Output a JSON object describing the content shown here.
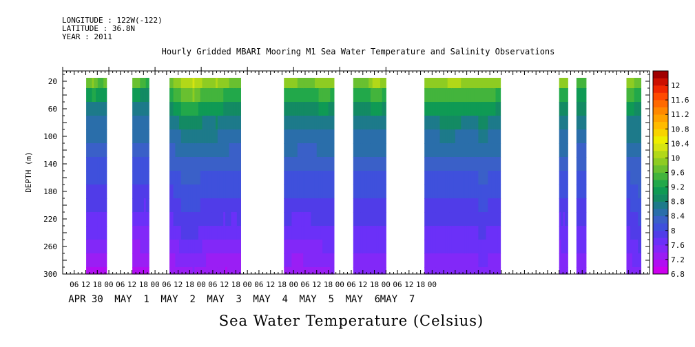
{
  "meta": {
    "longitude": "LONGITUDE : 122W(-122)",
    "latitude": "LATITUDE : 36.8N",
    "year": "YEAR : 2011"
  },
  "chart_data": {
    "type": "heatmap",
    "title": "Hourly Gridded MBARI Mooring M1 Sea Water Temperature and Salinity Observations",
    "xlabel": "Sea Water Temperature (Celsius)",
    "ylabel": "DEPTH (m)",
    "x_hour_ticks": [
      "06",
      "12",
      "18",
      "00",
      "06",
      "12",
      "18",
      "00",
      "06",
      "12",
      "18",
      "00",
      "06",
      "12",
      "18",
      "00",
      "06",
      "12",
      "18",
      "00",
      "06",
      "12",
      "18",
      "00",
      "06",
      "12",
      "18",
      "00",
      "06",
      "12",
      "18",
      "00"
    ],
    "date_labels": [
      "APR 30",
      "MAY  1",
      "MAY  2",
      "MAY  3",
      "MAY  4",
      "MAY  5",
      "MAY  6",
      "MAY  7"
    ],
    "y_ticks": [
      20,
      60,
      100,
      140,
      180,
      220,
      260,
      300
    ],
    "ylim": [
      300,
      5
    ],
    "colorbar_labels": [
      "12",
      "11.6",
      "11.2",
      "10.8",
      "10.4",
      "10",
      "9.6",
      "9.2",
      "8.8",
      "8.4",
      "8",
      "7.6",
      "7.2",
      "6.8"
    ],
    "colorbar_levels": [
      6.8,
      7.0,
      7.2,
      7.4,
      7.6,
      7.8,
      8.0,
      8.2,
      8.4,
      8.6,
      8.8,
      9.0,
      9.2,
      9.4,
      9.6,
      9.8,
      10.0,
      10.2,
      10.4,
      10.6,
      10.8,
      11.0,
      11.2,
      11.4,
      11.6,
      11.8,
      12.0,
      12.2
    ],
    "colors": [
      "#cc00ee",
      "#b10ef2",
      "#9a1ef4",
      "#8228f8",
      "#6b30f8",
      "#503ce8",
      "#3f50dc",
      "#3a60c8",
      "#2a6eaa",
      "#1d7a8a",
      "#138a63",
      "#0f9a54",
      "#22a84a",
      "#43b43c",
      "#69c030",
      "#8ecc22",
      "#b2d818",
      "#d6e412",
      "#eeee00",
      "#f8d400",
      "#ffbb00",
      "#ffa200",
      "#ff8800",
      "#ff6a00",
      "#ff4a00",
      "#f02800",
      "#cc1000",
      "#a00000"
    ],
    "depths": [
      20,
      40,
      60,
      80,
      100,
      120,
      140,
      160,
      180,
      200,
      220,
      240,
      260,
      280,
      300
    ],
    "segments": [
      {
        "start_hour": 12.2,
        "end_hour": 22.8,
        "profiles": [
          {
            "hour": 12.2,
            "values": [
              9.6,
              9.0,
              8.7,
              8.55,
              8.45,
              8.3,
              8.15,
              8.0,
              7.9,
              7.8,
              7.7,
              7.6,
              7.45,
              7.3,
              7.1
            ]
          },
          {
            "hour": 16.0,
            "values": [
              9.9,
              9.3,
              8.8,
              8.6,
              8.5,
              8.35,
              8.2,
              8.05,
              7.95,
              7.85,
              7.75,
              7.6,
              7.45,
              7.3,
              7.15
            ]
          },
          {
            "hour": 19.0,
            "values": [
              9.4,
              9.0,
              8.65,
              8.5,
              8.4,
              8.3,
              8.15,
              8.0,
              7.9,
              7.8,
              7.7,
              7.6,
              7.4,
              7.25,
              7.1
            ]
          },
          {
            "hour": 22.8,
            "values": [
              9.7,
              9.1,
              8.75,
              8.55,
              8.45,
              8.3,
              8.15,
              8.0,
              7.9,
              7.8,
              7.7,
              7.6,
              7.45,
              7.3,
              7.2
            ]
          }
        ]
      },
      {
        "start_hour": 36.2,
        "end_hour": 44.8,
        "profiles": [
          {
            "hour": 36.2,
            "values": [
              9.8,
              9.1,
              8.75,
              8.55,
              8.45,
              8.3,
              8.15,
              8.0,
              7.9,
              7.8,
              7.7,
              7.55,
              7.35,
              7.2,
              7.05
            ]
          },
          {
            "hour": 40.0,
            "values": [
              9.6,
              9.0,
              8.7,
              8.5,
              8.4,
              8.3,
              8.15,
              8.0,
              7.9,
              7.8,
              7.7,
              7.55,
              7.4,
              7.25,
              7.1
            ]
          },
          {
            "hour": 44.8,
            "values": [
              9.3,
              8.9,
              8.65,
              8.5,
              8.4,
              8.3,
              8.15,
              8.0,
              7.9,
              7.8,
              7.7,
              7.6,
              7.45,
              7.3,
              7.2
            ]
          }
        ]
      },
      {
        "start_hour": 55.5,
        "end_hour": 92.5,
        "profiles": [
          {
            "hour": 55.5,
            "values": [
              9.7,
              9.3,
              8.9,
              8.65,
              8.5,
              8.35,
              8.2,
              8.05,
              7.95,
              7.85,
              7.75,
              7.6,
              7.45,
              7.3,
              7.2
            ]
          },
          {
            "hour": 62.0,
            "values": [
              10.0,
              9.6,
              9.2,
              8.85,
              8.6,
              8.45,
              8.3,
              8.2,
              8.1,
              8.0,
              7.9,
              7.8,
              7.65,
              7.5,
              7.35
            ]
          },
          {
            "hour": 68.0,
            "values": [
              10.2,
              9.8,
              9.3,
              8.95,
              8.7,
              8.5,
              8.35,
              8.25,
              8.15,
              8.05,
              7.95,
              7.85,
              7.7,
              7.55,
              7.4
            ]
          },
          {
            "hour": 74.0,
            "values": [
              9.9,
              9.4,
              9.0,
              8.75,
              8.6,
              8.45,
              8.3,
              8.15,
              8.05,
              7.95,
              7.85,
              7.7,
              7.55,
              7.4,
              7.25
            ]
          },
          {
            "hour": 80.0,
            "values": [
              10.0,
              9.5,
              9.05,
              8.8,
              8.6,
              8.45,
              8.3,
              8.15,
              8.05,
              7.95,
              7.8,
              7.65,
              7.5,
              7.35,
              7.2
            ]
          },
          {
            "hour": 86.0,
            "values": [
              9.8,
              9.3,
              8.95,
              8.7,
              8.55,
              8.4,
              8.25,
              8.1,
              8.0,
              7.9,
              7.8,
              7.65,
              7.5,
              7.35,
              7.2
            ]
          },
          {
            "hour": 92.5,
            "values": [
              9.6,
              9.2,
              8.85,
              8.65,
              8.5,
              8.35,
              8.2,
              8.1,
              8.0,
              7.9,
              7.8,
              7.7,
              7.55,
              7.4,
              7.3
            ]
          }
        ]
      },
      {
        "start_hour": 115.0,
        "end_hour": 141.0,
        "profiles": [
          {
            "hour": 115.0,
            "values": [
              9.9,
              9.4,
              9.0,
              8.75,
              8.6,
              8.45,
              8.3,
              8.15,
              8.05,
              7.95,
              7.85,
              7.75,
              7.6,
              7.45,
              7.3
            ]
          },
          {
            "hour": 122.0,
            "values": [
              9.8,
              9.3,
              8.95,
              8.7,
              8.55,
              8.4,
              8.25,
              8.1,
              8.0,
              7.9,
              7.75,
              7.65,
              7.5,
              7.35,
              7.25
            ]
          },
          {
            "hour": 129.0,
            "values": [
              9.7,
              9.2,
              8.9,
              8.65,
              8.5,
              8.35,
              8.2,
              8.1,
              8.0,
              7.9,
              7.8,
              7.7,
              7.55,
              7.45,
              7.35
            ]
          },
          {
            "hour": 135.0,
            "values": [
              10.0,
              9.5,
              9.05,
              8.8,
              8.6,
              8.45,
              8.3,
              8.15,
              8.05,
              7.95,
              7.85,
              7.75,
              7.6,
              7.45,
              7.3
            ]
          },
          {
            "hour": 141.0,
            "values": [
              9.8,
              9.35,
              8.95,
              8.7,
              8.55,
              8.4,
              8.25,
              8.15,
              8.05,
              7.95,
              7.85,
              7.75,
              7.65,
              7.55,
              7.45
            ]
          }
        ]
      },
      {
        "start_hour": 151.0,
        "end_hour": 168.0,
        "profiles": [
          {
            "hour": 151.0,
            "values": [
              9.8,
              9.4,
              9.0,
              8.75,
              8.6,
              8.45,
              8.3,
              8.15,
              8.05,
              7.95,
              7.85,
              7.75,
              7.6,
              7.5,
              7.4
            ]
          },
          {
            "hour": 157.0,
            "values": [
              9.7,
              9.3,
              8.95,
              8.7,
              8.55,
              8.4,
              8.25,
              8.1,
              8.0,
              7.9,
              7.8,
              7.7,
              7.6,
              7.5,
              7.4
            ]
          },
          {
            "hour": 163.0,
            "values": [
              10.1,
              9.5,
              9.05,
              8.8,
              8.6,
              8.45,
              8.3,
              8.15,
              8.05,
              7.95,
              7.85,
              7.75,
              7.65,
              7.55,
              7.45
            ]
          },
          {
            "hour": 168.0,
            "values": [
              9.8,
              9.35,
              8.95,
              8.7,
              8.55,
              8.4,
              8.25,
              8.15,
              8.05,
              7.95,
              7.85,
              7.75,
              7.65,
              7.55,
              7.45
            ]
          }
        ]
      },
      {
        "start_hour": 188.0,
        "end_hour": 227.5,
        "profiles": [
          {
            "hour": 188.0,
            "values": [
              9.8,
              9.4,
              9.0,
              8.75,
              8.55,
              8.4,
              8.25,
              8.1,
              8.0,
              7.9,
              7.8,
              7.7,
              7.6,
              7.5,
              7.4
            ]
          },
          {
            "hour": 196.0,
            "values": [
              9.9,
              9.5,
              9.05,
              8.8,
              8.6,
              8.45,
              8.3,
              8.15,
              8.05,
              7.95,
              7.85,
              7.75,
              7.6,
              7.5,
              7.4
            ]
          },
          {
            "hour": 204.0,
            "values": [
              10.1,
              9.6,
              9.15,
              8.85,
              8.6,
              8.45,
              8.3,
              8.2,
              8.1,
              8.0,
              7.9,
              7.8,
              7.7,
              7.6,
              7.5
            ]
          },
          {
            "hour": 210.0,
            "values": [
              9.9,
              9.4,
              9.0,
              8.75,
              8.55,
              8.4,
              8.25,
              8.15,
              8.05,
              7.95,
              7.85,
              7.75,
              7.65,
              7.55,
              7.45
            ]
          },
          {
            "hour": 216.0,
            "values": [
              9.9,
              9.45,
              9.05,
              8.8,
              8.6,
              8.45,
              8.3,
              8.2,
              8.1,
              8.0,
              7.9,
              7.8,
              7.7,
              7.6,
              7.5
            ]
          },
          {
            "hour": 221.0,
            "values": [
              10.0,
              9.5,
              9.1,
              8.8,
              8.6,
              8.45,
              8.3,
              8.2,
              8.1,
              8.0,
              7.9,
              7.8,
              7.7,
              7.6,
              7.5
            ]
          },
          {
            "hour": 227.5,
            "values": [
              9.8,
              9.35,
              8.95,
              8.7,
              8.55,
              8.4,
              8.25,
              8.15,
              8.05,
              7.95,
              7.85,
              7.75,
              7.65,
              7.55,
              7.45
            ]
          }
        ]
      },
      {
        "start_hour": 258.0,
        "end_hour": 262.5,
        "profiles": [
          {
            "hour": 258.0,
            "values": [
              9.9,
              9.4,
              9.0,
              8.75,
              8.55,
              8.4,
              8.25,
              8.1,
              8.0,
              7.9,
              7.8,
              7.7,
              7.6,
              7.5,
              7.45
            ]
          },
          {
            "hour": 262.5,
            "values": [
              9.8,
              9.3,
              8.95,
              8.7,
              8.55,
              8.4,
              8.25,
              8.1,
              8.0,
              7.9,
              7.8,
              7.7,
              7.6,
              7.5,
              7.45
            ]
          }
        ]
      },
      {
        "start_hour": 267.0,
        "end_hour": 272.0,
        "profiles": [
          {
            "hour": 267.0,
            "values": [
              9.6,
              9.2,
              8.9,
              8.7,
              8.55,
              8.4,
              8.25,
              8.15,
              8.05,
              7.95,
              7.85,
              7.75,
              7.65,
              7.55,
              7.5
            ]
          },
          {
            "hour": 272.0,
            "values": [
              9.4,
              9.0,
              8.8,
              8.6,
              8.5,
              8.35,
              8.2,
              8.1,
              8.0,
              7.9,
              7.8,
              7.7,
              7.6,
              7.5,
              7.45
            ]
          }
        ]
      },
      {
        "start_hour": 293.0,
        "end_hour": 300.5,
        "profiles": [
          {
            "hour": 293.0,
            "values": [
              9.9,
              9.5,
              9.1,
              8.8,
              8.6,
              8.45,
              8.3,
              8.15,
              8.05,
              7.95,
              7.85,
              7.75,
              7.6,
              7.5,
              7.4
            ]
          },
          {
            "hour": 297.0,
            "values": [
              9.8,
              9.4,
              9.0,
              8.75,
              8.6,
              8.45,
              8.35,
              8.25,
              8.15,
              8.05,
              7.95,
              7.85,
              7.75,
              7.65,
              7.55
            ]
          },
          {
            "hour": 300.5,
            "values": [
              9.6,
              9.2,
              8.9,
              8.7,
              8.6,
              8.5,
              8.4,
              8.3,
              8.25,
              8.15,
              8.05,
              7.95,
              7.85,
              7.7,
              7.6
            ]
          }
        ]
      }
    ]
  }
}
